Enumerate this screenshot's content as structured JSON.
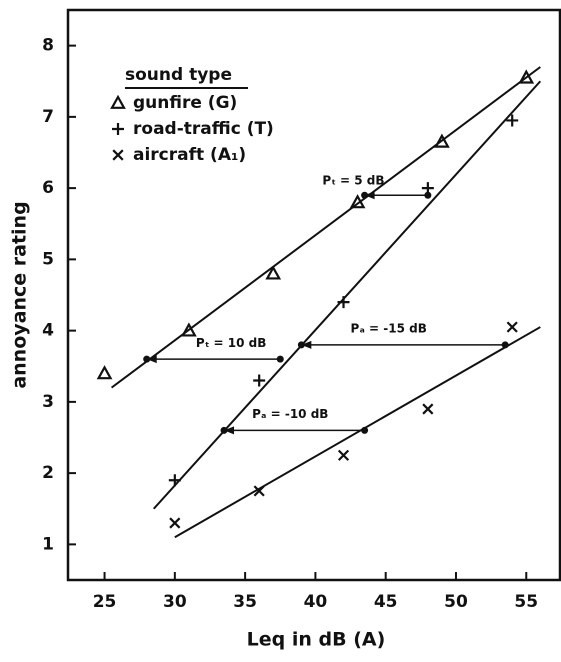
{
  "chart_data": {
    "type": "scatter",
    "xlabel": "Leq in dB (A)",
    "ylabel": "annoyance rating",
    "xlim": [
      22.4,
      57.4
    ],
    "ylim": [
      0.5,
      8.5
    ],
    "xticks": [
      25,
      30,
      35,
      40,
      45,
      50,
      55
    ],
    "yticks": [
      1,
      2,
      3,
      4,
      5,
      6,
      7,
      8
    ],
    "legend_title": "sound type",
    "series": [
      {
        "name": "gunfire (G)",
        "marker": "triangle",
        "color": "#111111",
        "x": [
          25,
          31,
          37,
          43,
          49,
          55
        ],
        "values": [
          3.4,
          4.0,
          4.8,
          5.8,
          6.65,
          7.55
        ],
        "fit": [
          [
            25.5,
            3.2
          ],
          [
            56,
            7.7
          ]
        ]
      },
      {
        "name": "road-traffic (T)",
        "marker": "plus",
        "color": "#111111",
        "x": [
          30,
          36,
          42,
          48,
          54
        ],
        "values": [
          1.9,
          3.3,
          4.4,
          6.0,
          6.95
        ],
        "fit": [
          [
            28.5,
            1.5
          ],
          [
            56,
            7.5
          ]
        ]
      },
      {
        "name": "aircraft (A₁)",
        "marker": "cross",
        "color": "#111111",
        "x": [
          30,
          36,
          42,
          48,
          54
        ],
        "values": [
          1.3,
          1.75,
          2.25,
          2.9,
          4.05
        ],
        "fit": [
          [
            30,
            1.1
          ],
          [
            56,
            4.05
          ]
        ]
      }
    ],
    "annotations": [
      {
        "text": "Pₜ = 5 dB",
        "x1": 48,
        "x2": 43.5,
        "y": 5.9,
        "tx": 40.5,
        "ty": 6.1
      },
      {
        "text": "Pₜ = 10 dB",
        "x1": 37.5,
        "x2": 28,
        "y": 3.6,
        "tx": 31.5,
        "ty": 3.82
      },
      {
        "text": "Pₐ = -15 dB",
        "x1": 53.5,
        "x2": 39,
        "y": 3.8,
        "tx": 42.5,
        "ty": 4.02
      },
      {
        "text": "Pₐ = -10 dB",
        "x1": 43.5,
        "x2": 33.5,
        "y": 2.6,
        "tx": 35.5,
        "ty": 2.82
      }
    ]
  }
}
